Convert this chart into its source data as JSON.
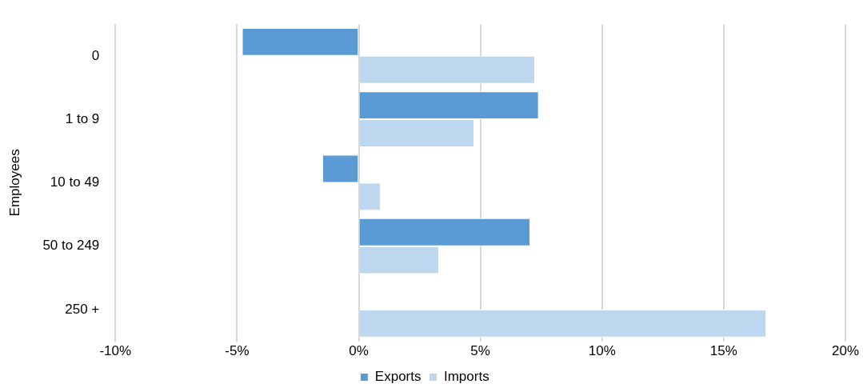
{
  "chart_data": {
    "type": "bar",
    "orientation": "horizontal",
    "ylabel": "Employees",
    "categories": [
      "0",
      "1 to 9",
      "10 to 49",
      "50 to 249",
      "250 +"
    ],
    "series": [
      {
        "name": "Exports",
        "color": "#5b9bd5",
        "values": [
          -4.8,
          7.4,
          -1.5,
          7.05,
          0
        ]
      },
      {
        "name": "Imports",
        "color": "#bdd7ee",
        "values": [
          7.25,
          4.75,
          0.9,
          3.3,
          16.75
        ]
      }
    ],
    "xlim": [
      -10,
      20
    ],
    "xticks": [
      {
        "value": -10,
        "label": "-10%"
      },
      {
        "value": -5,
        "label": "-5%"
      },
      {
        "value": 0,
        "label": "0%"
      },
      {
        "value": 5,
        "label": "5%"
      },
      {
        "value": 10,
        "label": "10%"
      },
      {
        "value": 15,
        "label": "15%"
      },
      {
        "value": 20,
        "label": "20%"
      }
    ],
    "grid": "x",
    "legend": "bottom"
  }
}
